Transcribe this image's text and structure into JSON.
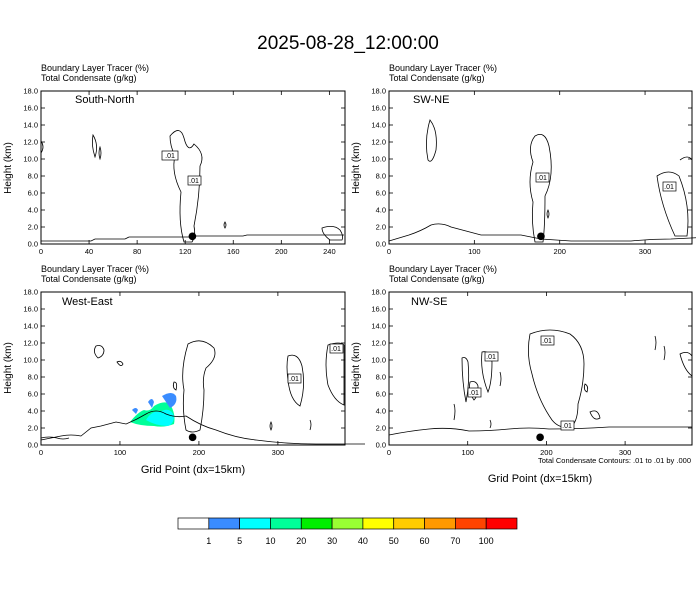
{
  "figure": {
    "title": "2025-08-28_12:00:00",
    "colorbar_labels": [
      "1",
      "5",
      "10",
      "20",
      "30",
      "40",
      "50",
      "60",
      "70",
      "100"
    ],
    "colorbar_colors": [
      "#ffffff",
      "#3a8cff",
      "#00ffff",
      "#00ff99",
      "#00ee00",
      "#99ff33",
      "#ffff00",
      "#ffcc00",
      "#ff9900",
      "#ff4400",
      "#ff0000"
    ],
    "contour_note": "Total Condensate Contours: .01 to .01 by .000",
    "xlabel": "Grid Point (dx=15km)"
  },
  "chart_data": [
    {
      "type": "contour",
      "panel_title": "South-North",
      "header_line1": "Boundary Layer Tracer   (%)",
      "header_line2": "Total Condensate   (g/kg)",
      "ylabel": "Height (km)",
      "xlim": [
        0,
        253
      ],
      "xticks": [
        "0",
        "40",
        "80",
        "120",
        "160",
        "200",
        "240"
      ],
      "ylim": [
        0,
        18
      ],
      "yticks": [
        "0.0",
        "2.0",
        "4.0",
        "6.0",
        "8.0",
        "10.0",
        "12.0",
        "14.0",
        "16.0",
        "18.0"
      ],
      "contour_labels": [
        ".01",
        ".01"
      ],
      "marker_x": 126
    },
    {
      "type": "contour",
      "panel_title": "SW-NE",
      "header_line1": "Boundary Layer Tracer   (%)",
      "header_line2": "Total Condensate   (g/kg)",
      "ylabel": "Height (km)",
      "xlim": [
        0,
        355
      ],
      "xticks": [
        "0",
        "100",
        "200",
        "300"
      ],
      "ylim": [
        0,
        18
      ],
      "yticks": [
        "0.0",
        "2.0",
        "4.0",
        "6.0",
        "8.0",
        "10.0",
        "12.0",
        "14.0",
        "16.0",
        "18.0"
      ],
      "contour_labels": [
        ".01",
        ".01"
      ],
      "marker_x": 178
    },
    {
      "type": "contour",
      "panel_title": "West-East",
      "header_line1": "Boundary Layer Tracer   (%)",
      "header_line2": "Total Condensate   (g/kg)",
      "ylabel": "Height (km)",
      "xlabel": "Grid Point (dx=15km)",
      "xlim": [
        0,
        385
      ],
      "xticks": [
        "0",
        "100",
        "200",
        "300"
      ],
      "ylim": [
        0,
        18
      ],
      "yticks": [
        "0.0",
        "2.0",
        "4.0",
        "6.0",
        "8.0",
        "10.0",
        "12.0",
        "14.0",
        "16.0",
        "18.0"
      ],
      "contour_labels": [
        ".01",
        ".01"
      ],
      "marker_x": 192
    },
    {
      "type": "contour",
      "panel_title": "NW-SE",
      "header_line1": "Boundary Layer Tracer   (%)",
      "header_line2": "Total Condensate   (g/kg)",
      "ylabel": "Height (km)",
      "xlabel": "Grid Point (dx=15km)",
      "xlim": [
        0,
        385
      ],
      "xticks": [
        "0",
        "100",
        "200",
        "300"
      ],
      "ylim": [
        0,
        18
      ],
      "yticks": [
        "0.0",
        "2.0",
        "4.0",
        "6.0",
        "8.0",
        "10.0",
        "12.0",
        "14.0",
        "16.0",
        "18.0"
      ],
      "contour_labels": [
        ".01",
        ".01",
        ".01",
        ".01"
      ],
      "marker_x": 192
    }
  ]
}
